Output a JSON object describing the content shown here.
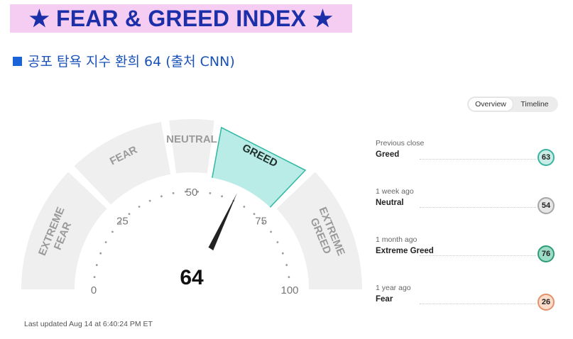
{
  "banner": {
    "title": "★ FEAR & GREED INDEX ★"
  },
  "subtitle": {
    "text": "공포 탐욕 지수 환희 64 (출처 CNN)"
  },
  "toggle": {
    "options": [
      "Overview",
      "Timeline"
    ],
    "active": "Overview"
  },
  "gauge": {
    "value": 64,
    "min": 0,
    "max": 100,
    "tick_labels": [
      "0",
      "25",
      "50",
      "75",
      "100"
    ],
    "segments": [
      {
        "label": "EXTREME FEAR",
        "lines": [
          "EXTREME",
          "FEAR"
        ],
        "from": 0,
        "to": 25
      },
      {
        "label": "FEAR",
        "lines": [
          "FEAR"
        ],
        "from": 25,
        "to": 45
      },
      {
        "label": "NEUTRAL",
        "lines": [
          "NEUTRAL"
        ],
        "from": 45,
        "to": 55
      },
      {
        "label": "GREED",
        "lines": [
          "GREED"
        ],
        "from": 55,
        "to": 75
      },
      {
        "label": "EXTREME GREED",
        "lines": [
          "EXTREME",
          "GREED"
        ],
        "from": 75,
        "to": 100
      }
    ],
    "active_segment": "GREED",
    "colors": {
      "segment": "#efefef",
      "segment_text": "#9a9a9a",
      "active_fill": "#b9ece6",
      "active_stroke": "#2fb8a3",
      "active_text": "#1f2f2c",
      "needle": "#222222",
      "ticks": "#9b9b9b"
    }
  },
  "last_updated": "Last updated Aug 14 at 6:40:24 PM ET",
  "history": [
    {
      "when": "Previous close",
      "rating": "Greed",
      "value": "63",
      "bg": "#c9ece6",
      "border": "#3ab3a0"
    },
    {
      "when": "1 week ago",
      "rating": "Neutral",
      "value": "54",
      "bg": "#e6e6e6",
      "border": "#a6a6a6"
    },
    {
      "when": "1 month ago",
      "rating": "Extreme Greed",
      "value": "76",
      "bg": "#9ddcc6",
      "border": "#2f9b79"
    },
    {
      "when": "1 year ago",
      "rating": "Fear",
      "value": "26",
      "bg": "#fbdccb",
      "border": "#e3916a"
    }
  ]
}
